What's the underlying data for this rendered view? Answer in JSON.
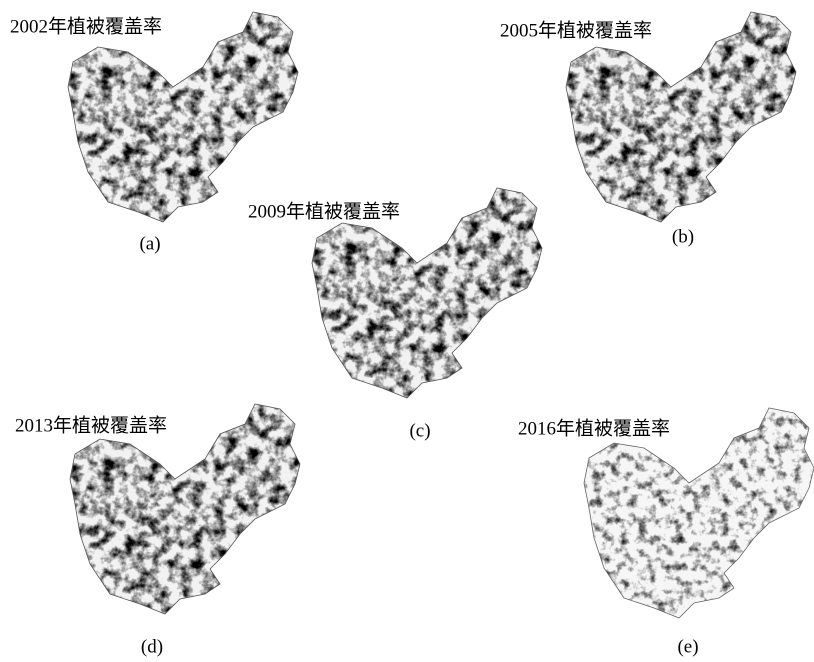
{
  "panels": [
    {
      "title": "2002年植被覆盖率",
      "label": "(a)"
    },
    {
      "title": "2005年植被覆盖率",
      "label": "(b)"
    },
    {
      "title": "2009年植被覆盖率",
      "label": "(c)"
    },
    {
      "title": "2013年植被覆盖率",
      "label": "(d)"
    },
    {
      "title": "2016年植被覆盖率",
      "label": "(e)"
    }
  ]
}
